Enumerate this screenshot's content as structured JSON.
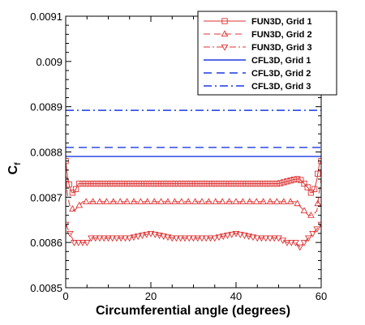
{
  "chart_data": {
    "type": "line",
    "xlabel": "Circumferential angle (degrees)",
    "ylabel": "C",
    "ylabel_sub": "f",
    "xlim": [
      0,
      60
    ],
    "ylim": [
      0.0085,
      0.0091
    ],
    "x_ticks": [
      0,
      20,
      40,
      60
    ],
    "x_tick_labels": [
      "0",
      "20",
      "40",
      "60"
    ],
    "y_ticks": [
      0.0085,
      0.0086,
      0.0087,
      0.0088,
      0.0089,
      0.009,
      0.0091
    ],
    "y_tick_labels": [
      "0.0085",
      "0.0086",
      "0.0087",
      "0.0088",
      "0.0089",
      "0.009",
      "0.0091"
    ],
    "grid": false,
    "legend_position": "top-right",
    "series": [
      {
        "name": "FUN3D, Grid 1",
        "color": "#dd3333",
        "dash": "solid",
        "marker": "square",
        "x": [
          0,
          0.5,
          1,
          1.5,
          2,
          2.5,
          3,
          4,
          5,
          6,
          10,
          20,
          30,
          40,
          50,
          54,
          55,
          56,
          57,
          57.5,
          58,
          58.5,
          59,
          59.5,
          60
        ],
        "values": [
          0.00878,
          0.00874,
          0.00872,
          0.00871,
          0.00871,
          0.00872,
          0.00873,
          0.00873,
          0.00873,
          0.00873,
          0.00873,
          0.00873,
          0.00873,
          0.00873,
          0.00873,
          0.00874,
          0.00874,
          0.00873,
          0.00872,
          0.00871,
          0.00871,
          0.00872,
          0.00874,
          0.00877,
          0.00878
        ],
        "marker_step": 0.8
      },
      {
        "name": "FUN3D, Grid 2",
        "color": "#dd3333",
        "dash": "8,5",
        "marker": "triangle-up",
        "x": [
          0,
          0.5,
          1,
          2,
          3,
          4,
          5,
          6,
          10,
          20,
          30,
          40,
          50,
          54,
          55,
          56,
          57,
          58,
          59,
          59.5,
          60
        ],
        "values": [
          0.00874,
          0.0087,
          0.00868,
          0.00867,
          0.00868,
          0.00869,
          0.00869,
          0.00869,
          0.00869,
          0.00869,
          0.00869,
          0.00869,
          0.00869,
          0.00869,
          0.00868,
          0.00867,
          0.00866,
          0.00866,
          0.00867,
          0.00871,
          0.00874
        ],
        "marker_step": 1.6
      },
      {
        "name": "FUN3D, Grid 3",
        "color": "#dd3333",
        "dash": "8,3,2,3",
        "marker": "triangle-down",
        "x": [
          0,
          0.5,
          1,
          2,
          3,
          4,
          5,
          6,
          7,
          8,
          10,
          15,
          20,
          25,
          30,
          35,
          40,
          45,
          50,
          52,
          54,
          55,
          56,
          57,
          58,
          59,
          60
        ],
        "values": [
          0.00864,
          0.00863,
          0.00862,
          0.0086,
          0.0086,
          0.0086,
          0.0086,
          0.00861,
          0.00861,
          0.00861,
          0.00861,
          0.00861,
          0.00862,
          0.00861,
          0.00861,
          0.00861,
          0.00862,
          0.00861,
          0.00861,
          0.0086,
          0.0086,
          0.00859,
          0.0086,
          0.00861,
          0.00862,
          0.00863,
          0.00864
        ],
        "marker_step": 1.0
      },
      {
        "name": "CFL3D, Grid 1",
        "color": "#1a3ae0",
        "dash": "solid",
        "marker": "none",
        "x": [
          0,
          60
        ],
        "values": [
          0.00879,
          0.00879
        ]
      },
      {
        "name": "CFL3D, Grid 2",
        "color": "#1a3ae0",
        "dash": "10,6",
        "marker": "none",
        "x": [
          0,
          60
        ],
        "values": [
          0.00881,
          0.00881
        ]
      },
      {
        "name": "CFL3D, Grid 3",
        "color": "#1a3ae0",
        "dash": "10,4,2,4",
        "marker": "none",
        "x": [
          0,
          60
        ],
        "values": [
          0.008892,
          0.008892
        ]
      }
    ]
  }
}
